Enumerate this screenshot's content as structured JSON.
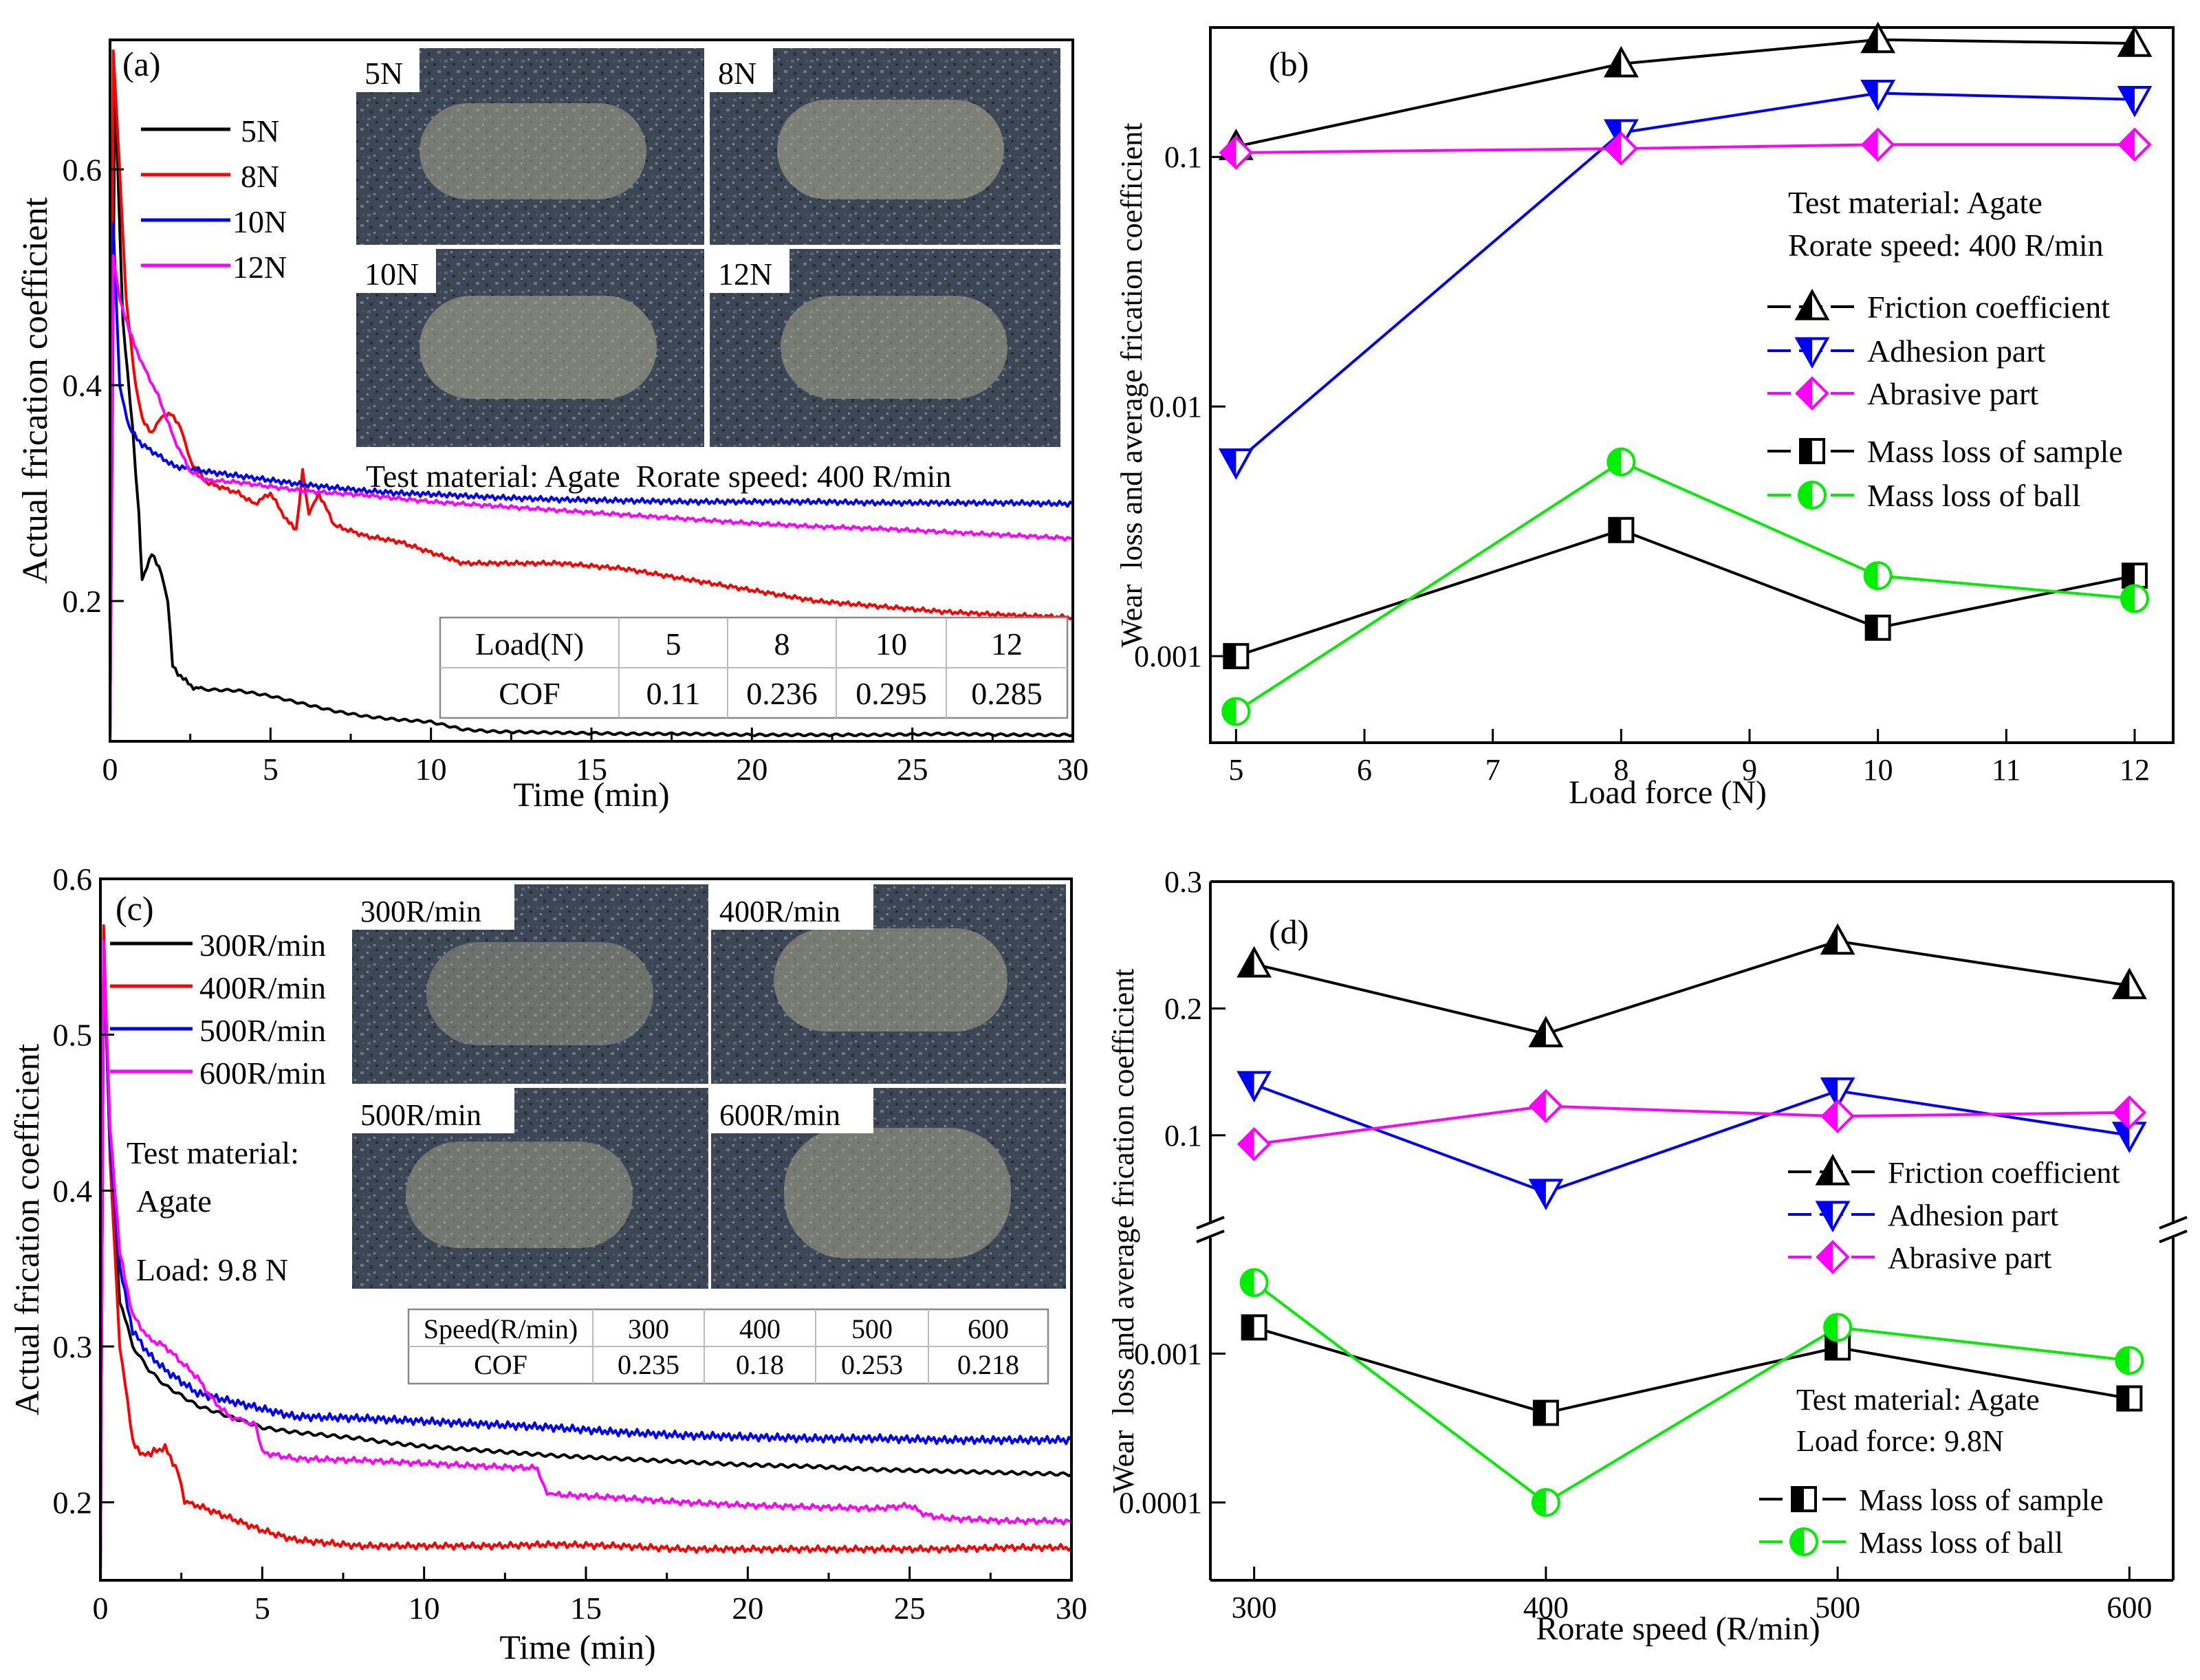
{
  "chart_data": [
    {
      "panel": "a",
      "panel_label": "(a)",
      "type": "line",
      "xlabel": "Time (min)",
      "ylabel": "Actual frication coefficient",
      "xlim": [
        0,
        30
      ],
      "ylim": [
        0.07,
        0.72
      ],
      "xticks": [
        "0",
        "5",
        "10",
        "15",
        "20",
        "25",
        "30"
      ],
      "yticks": [
        "0.2",
        "0.4",
        "0.6"
      ],
      "legend": [
        "5N",
        "8N",
        "10N",
        "12N"
      ],
      "legend_position": "top-left",
      "inset_images": [
        "5N",
        "8N",
        "10N",
        "12N"
      ],
      "annotation": "Test material: Agate  Rorate speed: 400 R/min",
      "table": {
        "header": [
          "Load(N)",
          "5",
          "8",
          "10",
          "12"
        ],
        "row": [
          "COF",
          "0.11",
          "0.236",
          "0.295",
          "0.285"
        ]
      },
      "series": [
        {
          "name": "5N",
          "color": "#000000",
          "x": [
            0,
            0.15,
            0.4,
            0.7,
            0.9,
            1.0,
            1.3,
            1.6,
            1.8,
            1.95,
            2.2,
            2.6,
            3,
            4,
            5,
            6,
            7,
            8,
            9,
            10,
            11,
            12,
            14,
            16,
            18,
            20,
            22,
            24,
            26,
            28,
            30
          ],
          "y": [
            0.07,
            0.68,
            0.46,
            0.36,
            0.28,
            0.22,
            0.245,
            0.225,
            0.2,
            0.14,
            0.13,
            0.12,
            0.118,
            0.117,
            0.112,
            0.105,
            0.098,
            0.093,
            0.09,
            0.088,
            0.081,
            0.079,
            0.078,
            0.077,
            0.077,
            0.076,
            0.076,
            0.076,
            0.077,
            0.076,
            0.076
          ]
        },
        {
          "name": "8N",
          "color": "#ff0000",
          "x": [
            0,
            0.1,
            0.3,
            0.5,
            0.8,
            1.0,
            1.3,
            1.6,
            1.9,
            2.2,
            2.5,
            3,
            4,
            4.5,
            5,
            5.5,
            5.8,
            6,
            6.2,
            6.5,
            7,
            8,
            9,
            10,
            10.5,
            11,
            12,
            14,
            16,
            18,
            20,
            22,
            24,
            26,
            28,
            30
          ],
          "y": [
            0.07,
            0.71,
            0.6,
            0.48,
            0.4,
            0.37,
            0.355,
            0.37,
            0.375,
            0.36,
            0.33,
            0.31,
            0.3,
            0.29,
            0.3,
            0.275,
            0.265,
            0.32,
            0.28,
            0.3,
            0.27,
            0.26,
            0.255,
            0.245,
            0.24,
            0.235,
            0.235,
            0.235,
            0.23,
            0.22,
            0.21,
            0.2,
            0.195,
            0.19,
            0.187,
            0.185
          ]
        },
        {
          "name": "10N",
          "color": "#0000ff",
          "x": [
            0,
            0.1,
            0.3,
            0.6,
            1,
            1.5,
            2,
            3,
            4,
            5,
            6,
            7,
            8,
            9,
            10,
            12,
            14,
            16,
            18,
            20,
            22,
            24,
            26,
            28,
            30
          ],
          "y": [
            0.07,
            0.55,
            0.4,
            0.36,
            0.345,
            0.335,
            0.325,
            0.32,
            0.316,
            0.312,
            0.308,
            0.305,
            0.302,
            0.3,
            0.299,
            0.296,
            0.294,
            0.293,
            0.292,
            0.292,
            0.292,
            0.291,
            0.291,
            0.291,
            0.29
          ]
        },
        {
          "name": "12N",
          "color": "#ff00ff",
          "x": [
            0,
            0.1,
            0.3,
            0.6,
            1,
            1.5,
            2,
            2.5,
            3,
            4,
            5,
            6,
            7,
            8,
            9,
            10,
            12,
            14,
            16,
            18,
            20,
            22,
            24,
            26,
            28,
            30
          ],
          "y": [
            0.07,
            0.52,
            0.48,
            0.45,
            0.42,
            0.39,
            0.35,
            0.32,
            0.312,
            0.31,
            0.306,
            0.302,
            0.3,
            0.298,
            0.295,
            0.292,
            0.288,
            0.284,
            0.28,
            0.276,
            0.272,
            0.269,
            0.267,
            0.264,
            0.261,
            0.258
          ]
        }
      ]
    },
    {
      "panel": "b",
      "panel_label": "(b)",
      "type": "line",
      "yscale": "log",
      "xlabel": "Load force (N)",
      "ylabel": "Wear  loss and average frication coefficient",
      "xlim": [
        4.8,
        12.3
      ],
      "ylim": [
        0.00045,
        0.33
      ],
      "xticks": [
        "5",
        "6",
        "7",
        "8",
        "9",
        "10",
        "11",
        "12"
      ],
      "yticks": [
        "0.001",
        "0.01",
        "0.1"
      ],
      "annotation": [
        "Test material: Agate",
        "Rorate speed: 400 R/min"
      ],
      "legend_position": "right",
      "series": [
        {
          "name": "Friction coefficient",
          "color": "#000000",
          "marker": "triangle-up",
          "x": [
            5,
            8,
            10,
            12
          ],
          "y": [
            0.11,
            0.236,
            0.295,
            0.285
          ]
        },
        {
          "name": "Adhesion part",
          "color": "#0000ff",
          "marker": "triangle-down",
          "x": [
            5,
            8,
            10,
            12
          ],
          "y": [
            0.006,
            0.125,
            0.18,
            0.17
          ]
        },
        {
          "name": "Abrasive part",
          "color": "#ff00ff",
          "marker": "diamond",
          "x": [
            5,
            8,
            10,
            12
          ],
          "y": [
            0.104,
            0.108,
            0.112,
            0.112
          ]
        },
        {
          "name": "Mass loss of sample",
          "color": "#000000",
          "marker": "square-half",
          "x": [
            5,
            8,
            10,
            12
          ],
          "y": [
            0.001,
            0.0032,
            0.0013,
            0.0021
          ]
        },
        {
          "name": "Mass loss of ball",
          "color": "#00ee00",
          "marker": "circle-half",
          "x": [
            5,
            8,
            10,
            12
          ],
          "y": [
            0.0006,
            0.006,
            0.0021,
            0.0017
          ]
        }
      ]
    },
    {
      "panel": "c",
      "panel_label": "(c)",
      "type": "line",
      "xlabel": "Time (min)",
      "ylabel": "Actual frication coefficient",
      "xlim": [
        0,
        30
      ],
      "ylim": [
        0.15,
        0.6
      ],
      "xticks": [
        "0",
        "5",
        "10",
        "15",
        "20",
        "25",
        "30"
      ],
      "yticks": [
        "0.2",
        "0.3",
        "0.4",
        "0.5",
        "0.6"
      ],
      "legend": [
        "300R/min",
        "400R/min",
        "500R/min",
        "600R/min"
      ],
      "legend_position": "top-left",
      "inset_images": [
        "300R/min",
        "400R/min",
        "500R/min",
        "600R/min"
      ],
      "annotation": [
        "Test material:",
        "Agate",
        "Load: 9.8 N"
      ],
      "table": {
        "header": [
          "Speed(R/min)",
          "300",
          "400",
          "500",
          "600"
        ],
        "row": [
          "COF",
          "0.235",
          "0.18",
          "0.253",
          "0.218"
        ]
      },
      "series": [
        {
          "name": "300R/min",
          "color": "#000000",
          "x": [
            0,
            0.1,
            0.3,
            0.6,
            1,
            1.5,
            2,
            3,
            4,
            5,
            6,
            7,
            8,
            9,
            10,
            12,
            14,
            16,
            18,
            20,
            22,
            24,
            26,
            28,
            30
          ],
          "y": [
            0.15,
            0.56,
            0.42,
            0.33,
            0.3,
            0.285,
            0.275,
            0.262,
            0.255,
            0.248,
            0.245,
            0.243,
            0.241,
            0.238,
            0.236,
            0.233,
            0.23,
            0.228,
            0.226,
            0.224,
            0.223,
            0.221,
            0.22,
            0.219,
            0.218
          ]
        },
        {
          "name": "400R/min",
          "color": "#ff0000",
          "x": [
            0,
            0.1,
            0.3,
            0.6,
            1,
            1.3,
            2,
            2.4,
            2.6,
            3,
            4,
            5,
            6,
            7,
            8,
            10,
            12,
            14,
            16,
            18,
            20,
            22,
            24,
            26,
            28,
            30
          ],
          "y": [
            0.15,
            0.57,
            0.42,
            0.3,
            0.24,
            0.23,
            0.235,
            0.22,
            0.2,
            0.198,
            0.19,
            0.182,
            0.176,
            0.174,
            0.172,
            0.172,
            0.172,
            0.173,
            0.172,
            0.17,
            0.17,
            0.17,
            0.17,
            0.17,
            0.171,
            0.171
          ]
        },
        {
          "name": "500R/min",
          "color": "#0000ff",
          "x": [
            0,
            0.1,
            0.3,
            0.6,
            1,
            1.5,
            2,
            3,
            4,
            5,
            6,
            8,
            10,
            12,
            14,
            16,
            18,
            20,
            22,
            24,
            26,
            28,
            30
          ],
          "y": [
            0.15,
            0.55,
            0.43,
            0.35,
            0.31,
            0.295,
            0.285,
            0.27,
            0.265,
            0.26,
            0.255,
            0.254,
            0.252,
            0.25,
            0.248,
            0.245,
            0.243,
            0.242,
            0.241,
            0.241,
            0.24,
            0.24,
            0.24
          ]
        },
        {
          "name": "600R/min",
          "color": "#ff00ff",
          "x": [
            0,
            0.1,
            0.3,
            0.6,
            1,
            1.5,
            2,
            2.5,
            3,
            3.5,
            4,
            4.8,
            5,
            6,
            8,
            10,
            12,
            13.5,
            13.8,
            14,
            16,
            18,
            20,
            22,
            24,
            25,
            25.5,
            26,
            28,
            30
          ],
          "y": [
            0.15,
            0.56,
            0.44,
            0.36,
            0.32,
            0.305,
            0.3,
            0.29,
            0.28,
            0.265,
            0.255,
            0.25,
            0.232,
            0.228,
            0.227,
            0.225,
            0.223,
            0.222,
            0.206,
            0.205,
            0.203,
            0.2,
            0.198,
            0.197,
            0.196,
            0.198,
            0.192,
            0.19,
            0.188,
            0.188
          ]
        }
      ]
    },
    {
      "panel": "d",
      "panel_label": "(d)",
      "type": "line",
      "yscale": "broken: linear 0–0.3 above break, log below break",
      "xlabel": "Rorate speed (R/min)",
      "ylabel": "Wear  loss and average frication coefficient",
      "xlim": [
        285,
        615
      ],
      "upper_ylim": [
        0.03,
        0.3
      ],
      "lower_ylim": [
        3e-05,
        0.006
      ],
      "xticks": [
        "300",
        "400",
        "500",
        "600"
      ],
      "yticks_upper": [
        "0.1",
        "0.2",
        "0.3"
      ],
      "yticks_lower": [
        "0.0001",
        "0.001"
      ],
      "annotation": [
        "Test material: Agate",
        "Load force: 9.8N"
      ],
      "series": [
        {
          "name": "Friction coefficient",
          "color": "#000000",
          "marker": "triangle-up",
          "x": [
            300,
            400,
            500,
            600
          ],
          "y": [
            0.235,
            0.18,
            0.253,
            0.218
          ]
        },
        {
          "name": "Adhesion part",
          "color": "#0000ff",
          "marker": "triangle-down",
          "x": [
            300,
            400,
            500,
            600
          ],
          "y": [
            0.14,
            0.055,
            0.135,
            0.1
          ]
        },
        {
          "name": "Abrasive part",
          "color": "#ff00ff",
          "marker": "diamond",
          "x": [
            300,
            400,
            500,
            600
          ],
          "y": [
            0.093,
            0.123,
            0.115,
            0.118
          ]
        },
        {
          "name": "Mass loss of sample",
          "color": "#000000",
          "marker": "square-half",
          "x": [
            300,
            400,
            500,
            600
          ],
          "y": [
            0.0015,
            0.0004,
            0.0011,
            0.0005
          ]
        },
        {
          "name": "Mass loss of ball",
          "color": "#00ee00",
          "marker": "circle-half",
          "x": [
            300,
            400,
            500,
            600
          ],
          "y": [
            0.003,
            0.0001,
            0.0015,
            0.0009
          ]
        }
      ]
    }
  ]
}
